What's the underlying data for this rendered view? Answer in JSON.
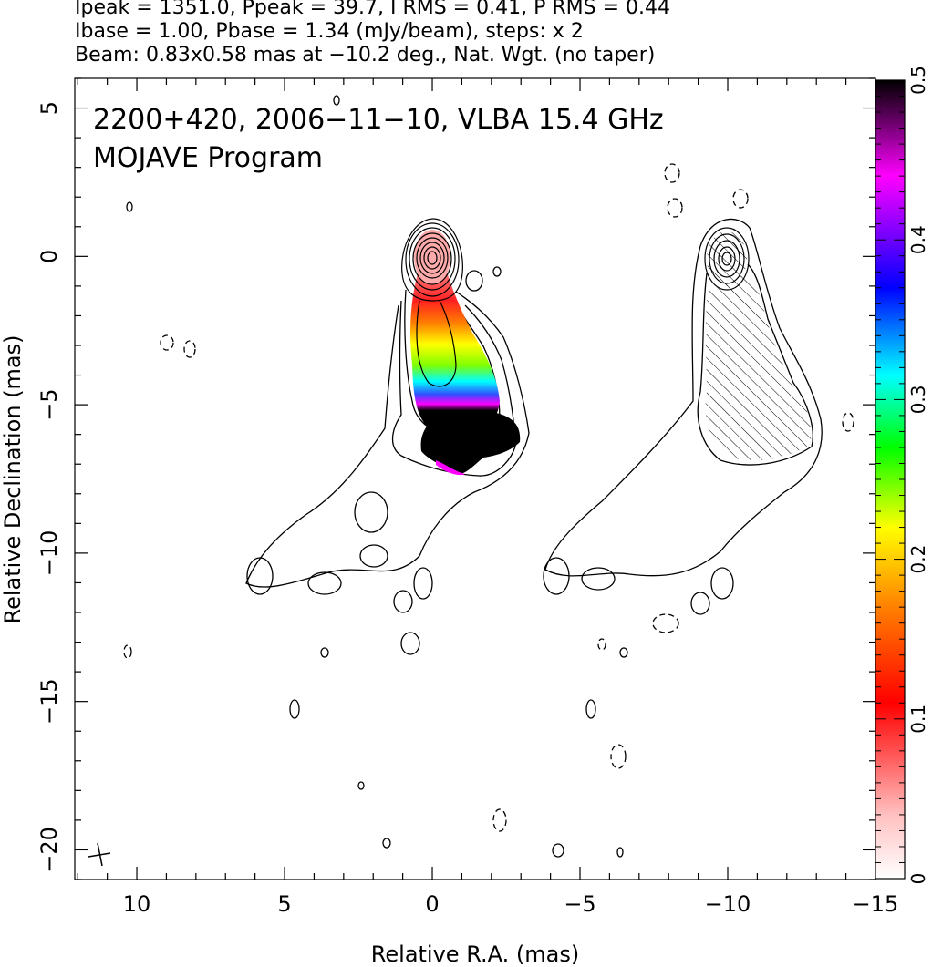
{
  "header": {
    "line1": "Ipeak = 1351.0, Ppeak = 39.7, I RMS = 0.41, P RMS = 0.44",
    "line2": "Ibase = 1.00, Pbase = 1.34 (mJy/beam), steps: x 2",
    "line3": "Beam: 0.83x0.58 mas at −10.2 deg., Nat. Wgt. (no taper)"
  },
  "chart_data": {
    "type": "heatmap",
    "title": "2200+420, 2006−11−10, VLBA 15.4 GHz",
    "subtitle": "MOJAVE Program",
    "xlabel": "Relative R.A. (mas)",
    "ylabel": "Relative Declination (mas)",
    "xlim": [
      12.1,
      -15
    ],
    "ylim": [
      -21,
      6
    ],
    "x_ticks": [
      10,
      5,
      0,
      -5,
      -10,
      -15
    ],
    "x_tick_labels": [
      "10",
      "5",
      "0",
      "−5",
      "−10",
      "−15"
    ],
    "y_ticks": [
      5,
      0,
      -5,
      -10,
      -15,
      -20
    ],
    "y_tick_labels": [
      "5",
      "0",
      "−5",
      "−10",
      "−15",
      "−20"
    ],
    "colorbar": {
      "range": [
        0,
        0.5
      ],
      "ticks": [
        0,
        0.1,
        0.2,
        0.3,
        0.4,
        0.5
      ],
      "tick_labels": [
        "0",
        "0.1",
        "0.2",
        "0.3",
        "0.4",
        "0.5"
      ],
      "colors": [
        "#ffffff",
        "#ff9090",
        "#ff0000",
        "#ff8000",
        "#ffff00",
        "#00ff00",
        "#00ffff",
        "#0000ff",
        "#ff00ff",
        "#000000"
      ]
    },
    "left_panel": {
      "core": {
        "ra": 0.0,
        "dec": 0.0
      },
      "color_ridge": [
        {
          "ra": 0.0,
          "dec": 0.0,
          "value": 0.11
        },
        {
          "ra": -0.2,
          "dec": -2.0,
          "value": 0.15
        },
        {
          "ra": -0.8,
          "dec": -3.5,
          "value": 0.18
        },
        {
          "ra": -1.4,
          "dec": -4.5,
          "value": 0.25
        },
        {
          "ra": -1.6,
          "dec": -5.5,
          "value": 0.38
        },
        {
          "ra": -1.4,
          "dec": -6.5,
          "value": 0.5
        }
      ]
    },
    "right_panel_offset_ra": -10.0
  }
}
